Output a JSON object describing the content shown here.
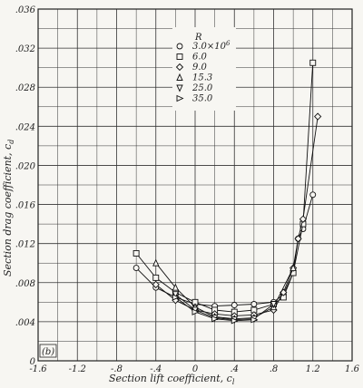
{
  "chart_data": {
    "type": "line",
    "xlabel": "Section lift coefficient, c",
    "xlabel_sub": "l",
    "ylabel": "Section drag coefficient, c",
    "ylabel_sub": "d",
    "xlim": [
      -1.6,
      1.6
    ],
    "ylim": [
      0,
      0.036
    ],
    "grid": true,
    "x_ticks": [
      "-1.6",
      "-1.2",
      "-.8",
      "-.4",
      "0",
      ".4",
      ".8",
      "1.2",
      "1.6"
    ],
    "y_ticks": [
      "0",
      ".004",
      ".008",
      ".012",
      ".016",
      ".020",
      ".024",
      ".028",
      ".032",
      ".036"
    ],
    "panel_label": "(b)",
    "legend": {
      "title": "R",
      "placement": "top-center",
      "entries": [
        {
          "label": "3.0×10",
          "sup": "6",
          "marker": "circle"
        },
        {
          "label": "6.0",
          "sup": "",
          "marker": "square"
        },
        {
          "label": "9.0",
          "sup": "",
          "marker": "diamond"
        },
        {
          "label": "15.3",
          "sup": "",
          "marker": "triangle-up"
        },
        {
          "label": "25.0",
          "sup": "",
          "marker": "triangle-down"
        },
        {
          "label": "35.0",
          "sup": "",
          "marker": "triangle-right"
        }
      ]
    },
    "series": [
      {
        "marker": "circle",
        "x": [
          -0.6,
          -0.4,
          -0.2,
          0.0,
          0.2,
          0.4,
          0.6,
          0.8,
          0.9,
          1.0,
          1.05,
          1.1,
          1.2
        ],
        "y": [
          0.0095,
          0.0075,
          0.0065,
          0.0058,
          0.0056,
          0.0057,
          0.0058,
          0.006,
          0.0068,
          0.009,
          0.0125,
          0.0135,
          0.017
        ]
      },
      {
        "marker": "square",
        "x": [
          -0.6,
          -0.4,
          -0.2,
          0.0,
          0.2,
          0.4,
          0.6,
          0.8,
          0.9,
          1.0,
          1.1,
          1.2
        ],
        "y": [
          0.011,
          0.0085,
          0.007,
          0.006,
          0.0052,
          0.005,
          0.0052,
          0.0058,
          0.0065,
          0.009,
          0.014,
          0.0305
        ]
      },
      {
        "marker": "diamond",
        "x": [
          -0.4,
          -0.2,
          0.0,
          0.2,
          0.4,
          0.6,
          0.8,
          0.9,
          1.0,
          1.05,
          1.1,
          1.25
        ],
        "y": [
          0.0078,
          0.0062,
          0.0052,
          0.0048,
          0.0046,
          0.0047,
          0.0052,
          0.007,
          0.0095,
          0.0125,
          0.0145,
          0.025
        ]
      },
      {
        "marker": "triangle-up",
        "x": [
          -0.4,
          -0.2,
          0.0,
          0.2,
          0.4,
          0.6,
          0.8,
          1.0
        ],
        "y": [
          0.01,
          0.0075,
          0.0055,
          0.0045,
          0.0043,
          0.0044,
          0.0055,
          0.0095
        ]
      },
      {
        "marker": "triangle-down",
        "x": [
          -0.2,
          0.0,
          0.2,
          0.4,
          0.6,
          0.8
        ],
        "y": [
          0.0068,
          0.0052,
          0.0044,
          0.0042,
          0.0043,
          0.0058
        ]
      },
      {
        "marker": "triangle-right",
        "x": [
          -0.2,
          0.0,
          0.2,
          0.4,
          0.6
        ],
        "y": [
          0.0065,
          0.005,
          0.0043,
          0.0041,
          0.0042
        ]
      }
    ]
  }
}
